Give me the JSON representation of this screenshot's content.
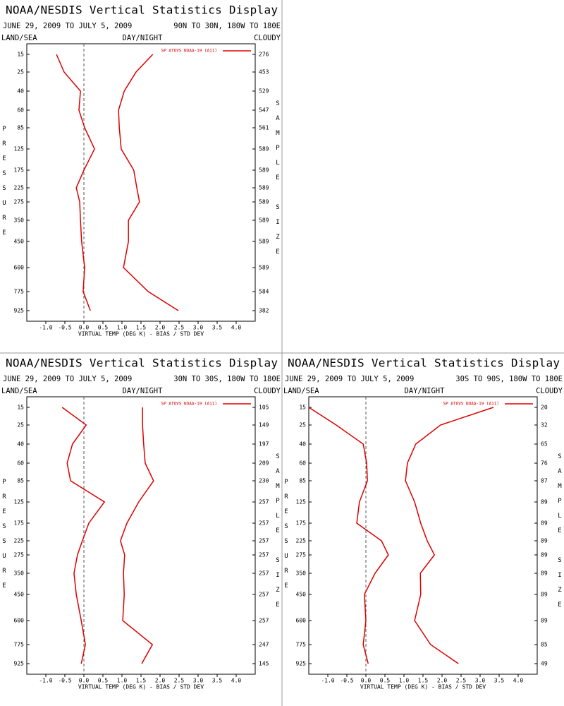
{
  "chart_data": [
    {
      "type": "line",
      "title": "NOAA/NESDIS Vertical Statistics Display",
      "subtitle": "JUNE 29, 2009 TO JULY 5, 2009",
      "region": "90N TO 30N, 180W TO 180E",
      "land_sea": "LAND/SEA",
      "day_night": "DAY/NIGHT",
      "cloudy": "CLOUDY",
      "y_label": "PRESSURE",
      "y2_label": "SAMPLE SIZE",
      "x_label": "VIRTUAL TEMP (DEG K) - BIAS / STD DEV",
      "categories": [
        15,
        25,
        40,
        60,
        85,
        125,
        175,
        225,
        275,
        350,
        450,
        600,
        775,
        925
      ],
      "sample_sizes": [
        276,
        453,
        529,
        547,
        561,
        589,
        589,
        589,
        589,
        589,
        589,
        589,
        584,
        382
      ],
      "series": [
        {
          "name": "SP ATOVS NOAA-19 (A11)",
          "color": "#dd0000",
          "values": [
            -0.72,
            -0.52,
            -0.09,
            -0.13,
            0.02,
            0.28,
            0.0,
            -0.2,
            -0.11,
            -0.09,
            -0.06,
            0.02,
            -0.02,
            0.17
          ]
        },
        {
          "color": "#dd0000",
          "values": [
            1.81,
            1.37,
            1.06,
            0.91,
            0.93,
            0.98,
            1.31,
            1.39,
            1.46,
            1.17,
            1.17,
            1.04,
            1.69,
            2.48
          ]
        }
      ],
      "xlim": [
        -1.5,
        4.5
      ],
      "xticks": [
        {
          "value": -1,
          "label": "-1.0"
        },
        -0.5,
        {
          "value": 0,
          "label": "0.0"
        },
        0.5,
        {
          "value": 1,
          "label": "1.0"
        },
        1.5,
        {
          "value": 2,
          "label": "2.0"
        },
        2.5,
        {
          "value": 3,
          "label": "3.0"
        },
        3.5,
        {
          "value": 4,
          "label": "4.0"
        }
      ]
    },
    {
      "type": "line",
      "title": "NOAA/NESDIS Vertical Statistics Display",
      "subtitle": "JUNE 29, 2009 TO JULY 5, 2009",
      "region": "30N TO 30S, 180W TO 180E",
      "land_sea": "LAND/SEA",
      "day_night": "DAY/NIGHT",
      "cloudy": "CLOUDY",
      "y_label": "PRESSURE",
      "y2_label": "SAMPLE SIZE",
      "x_label": "VIRTUAL TEMP (DEG K) - BIAS / STD DEV",
      "categories": [
        15,
        25,
        40,
        60,
        85,
        125,
        175,
        225,
        275,
        350,
        450,
        600,
        775,
        925
      ],
      "sample_sizes": [
        105,
        149,
        197,
        209,
        230,
        257,
        257,
        257,
        257,
        257,
        257,
        257,
        247,
        145
      ],
      "series": [
        {
          "name": "SP ATOVS NOAA-19 (A11)",
          "color": "#dd0000",
          "values": [
            -0.57,
            0.06,
            -0.3,
            -0.44,
            -0.35,
            0.54,
            0.13,
            -0.04,
            -0.17,
            -0.26,
            -0.2,
            -0.07,
            0.04,
            -0.07
          ]
        },
        {
          "color": "#dd0000",
          "values": [
            1.54,
            1.54,
            1.57,
            1.61,
            1.83,
            1.44,
            1.13,
            0.96,
            1.07,
            1.04,
            1.06,
            1.02,
            1.8,
            1.52
          ]
        }
      ],
      "xlim": [
        -1.5,
        4.5
      ],
      "xticks": [
        {
          "value": -1,
          "label": "-1.0"
        },
        -0.5,
        {
          "value": 0,
          "label": "0.0"
        },
        0.5,
        {
          "value": 1,
          "label": "1.0"
        },
        1.5,
        {
          "value": 2,
          "label": "2.0"
        },
        2.5,
        {
          "value": 3,
          "label": "3.0"
        },
        3.5,
        {
          "value": 4,
          "label": "4.0"
        }
      ]
    },
    {
      "type": "line",
      "title": "NOAA/NESDIS Vertical Statistics Display",
      "subtitle": "JUNE 29, 2009 TO JULY 5, 2009",
      "region": "30S TO 90S, 180W TO 180E",
      "land_sea": "LAND/SEA",
      "day_night": "DAY/NIGHT",
      "cloudy": "CLOUDY",
      "y_label": "PRESSURE",
      "y2_label": "SAMPLE SIZE",
      "x_label": "VIRTUAL TEMP (DEG K) - BIAS / STD DEV",
      "categories": [
        15,
        25,
        40,
        60,
        85,
        125,
        175,
        225,
        275,
        350,
        450,
        600,
        775,
        925
      ],
      "sample_sizes": [
        20,
        32,
        65,
        76,
        87,
        89,
        89,
        89,
        89,
        89,
        89,
        89,
        85,
        49
      ],
      "series": [
        {
          "name": "SP ATOVS NOAA-19 (A11)",
          "color": "#dd0000",
          "values": [
            -1.5,
            -0.78,
            -0.07,
            0.02,
            0.04,
            -0.17,
            -0.24,
            0.41,
            0.59,
            0.24,
            -0.04,
            0.0,
            -0.07,
            0.06
          ]
        },
        {
          "color": "#dd0000",
          "values": [
            3.35,
            1.96,
            1.31,
            1.09,
            1.04,
            1.28,
            1.44,
            1.61,
            1.8,
            1.43,
            1.44,
            1.28,
            1.7,
            2.43
          ]
        }
      ],
      "xlim": [
        -1.5,
        4.5
      ],
      "xticks": [
        {
          "value": -1,
          "label": "-1.0"
        },
        -0.5,
        {
          "value": 0,
          "label": "0.0"
        },
        0.5,
        {
          "value": 1,
          "label": "1.0"
        },
        1.5,
        {
          "value": 2,
          "label": "2.0"
        },
        2.5,
        {
          "value": 3,
          "label": "3.0"
        },
        3.5,
        {
          "value": 4,
          "label": "4.0"
        }
      ]
    }
  ]
}
